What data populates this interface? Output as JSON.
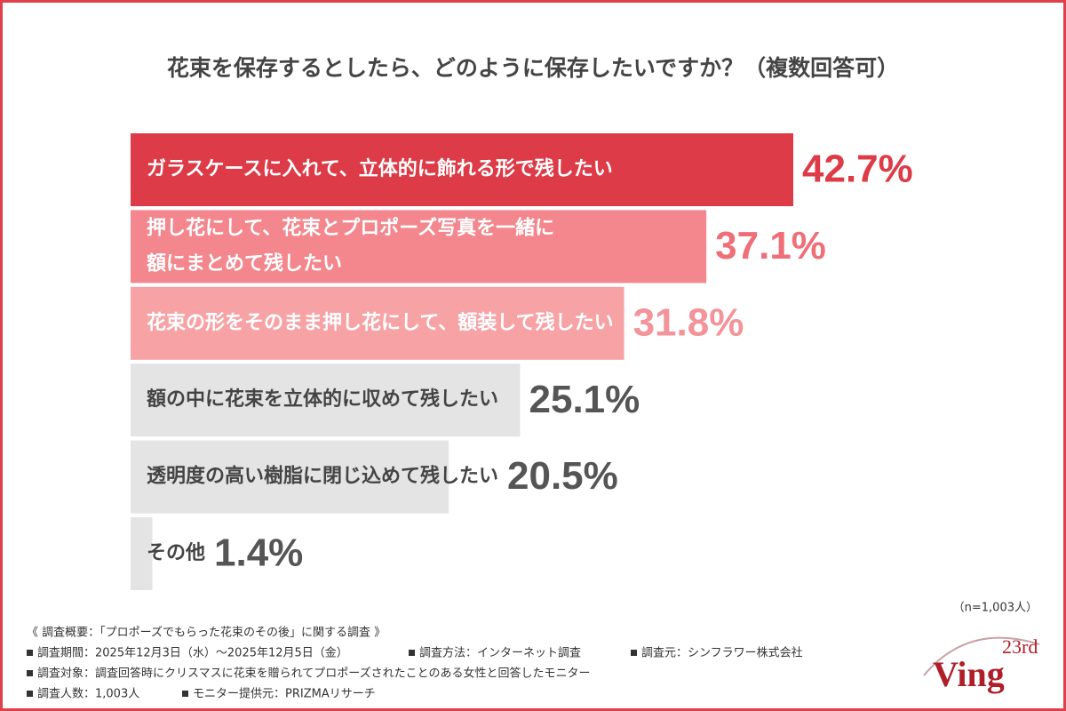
{
  "chart_data": {
    "type": "hbar",
    "title": "花束を保存するとしたら、どのように保存したいですか？（複数回答可）",
    "categories": [
      [
        "ガラスケースに入れて、立体的に飾れる形で残したい"
      ],
      [
        "押し花にして、花束とプロポーズ写真を一緒に",
        "額にまとめて残したい"
      ],
      [
        "花束の形をそのまま押し花にして、額装して残したい"
      ],
      [
        "額の中に花束を立体的に収めて残したい"
      ],
      [
        "透明度の高い樹脂に閉じ込めて残したい"
      ],
      [
        "その他"
      ]
    ],
    "values": [
      42.7,
      37.1,
      31.8,
      25.1,
      20.5,
      1.4
    ],
    "value_labels": [
      "42.7%",
      "37.1%",
      "31.8%",
      "25.1%",
      "20.5%",
      "1.4%"
    ],
    "colors": [
      "#dc3b47",
      "#f3878d",
      "#f7a3a6",
      "#e4e4e4",
      "#e4e4e4",
      "#e4e4e4"
    ],
    "label_colors": [
      "#ffffff",
      "#ffffff",
      "#ffffff",
      "#444444",
      "#444444",
      "#444444"
    ],
    "value_label_colors": [
      "#dc3b47",
      "#ef6f78",
      "#f3939a",
      "#555555",
      "#555555",
      "#555555"
    ],
    "note": "（n=1,003人）"
  },
  "footer": {
    "survey_title": "《 調査概要：「プロポーズでもらった花束のその後」に関する調査 》",
    "rows": [
      [
        "調査期間：2025年12月3日（水）〜2025年12月5日（金）",
        "調査方法：インターネット調査",
        "調査元：シンフラワー株式会社"
      ],
      [
        "調査対象：調査回答時にクリスマスに花束を贈られてプロポーズされたことのある女性と回答したモニター"
      ],
      [
        "調査人数：1,003人",
        "モニター提供元：PRIZMAリサーチ"
      ]
    ]
  },
  "logo": {
    "edition": "23rd",
    "name": "Ving"
  }
}
